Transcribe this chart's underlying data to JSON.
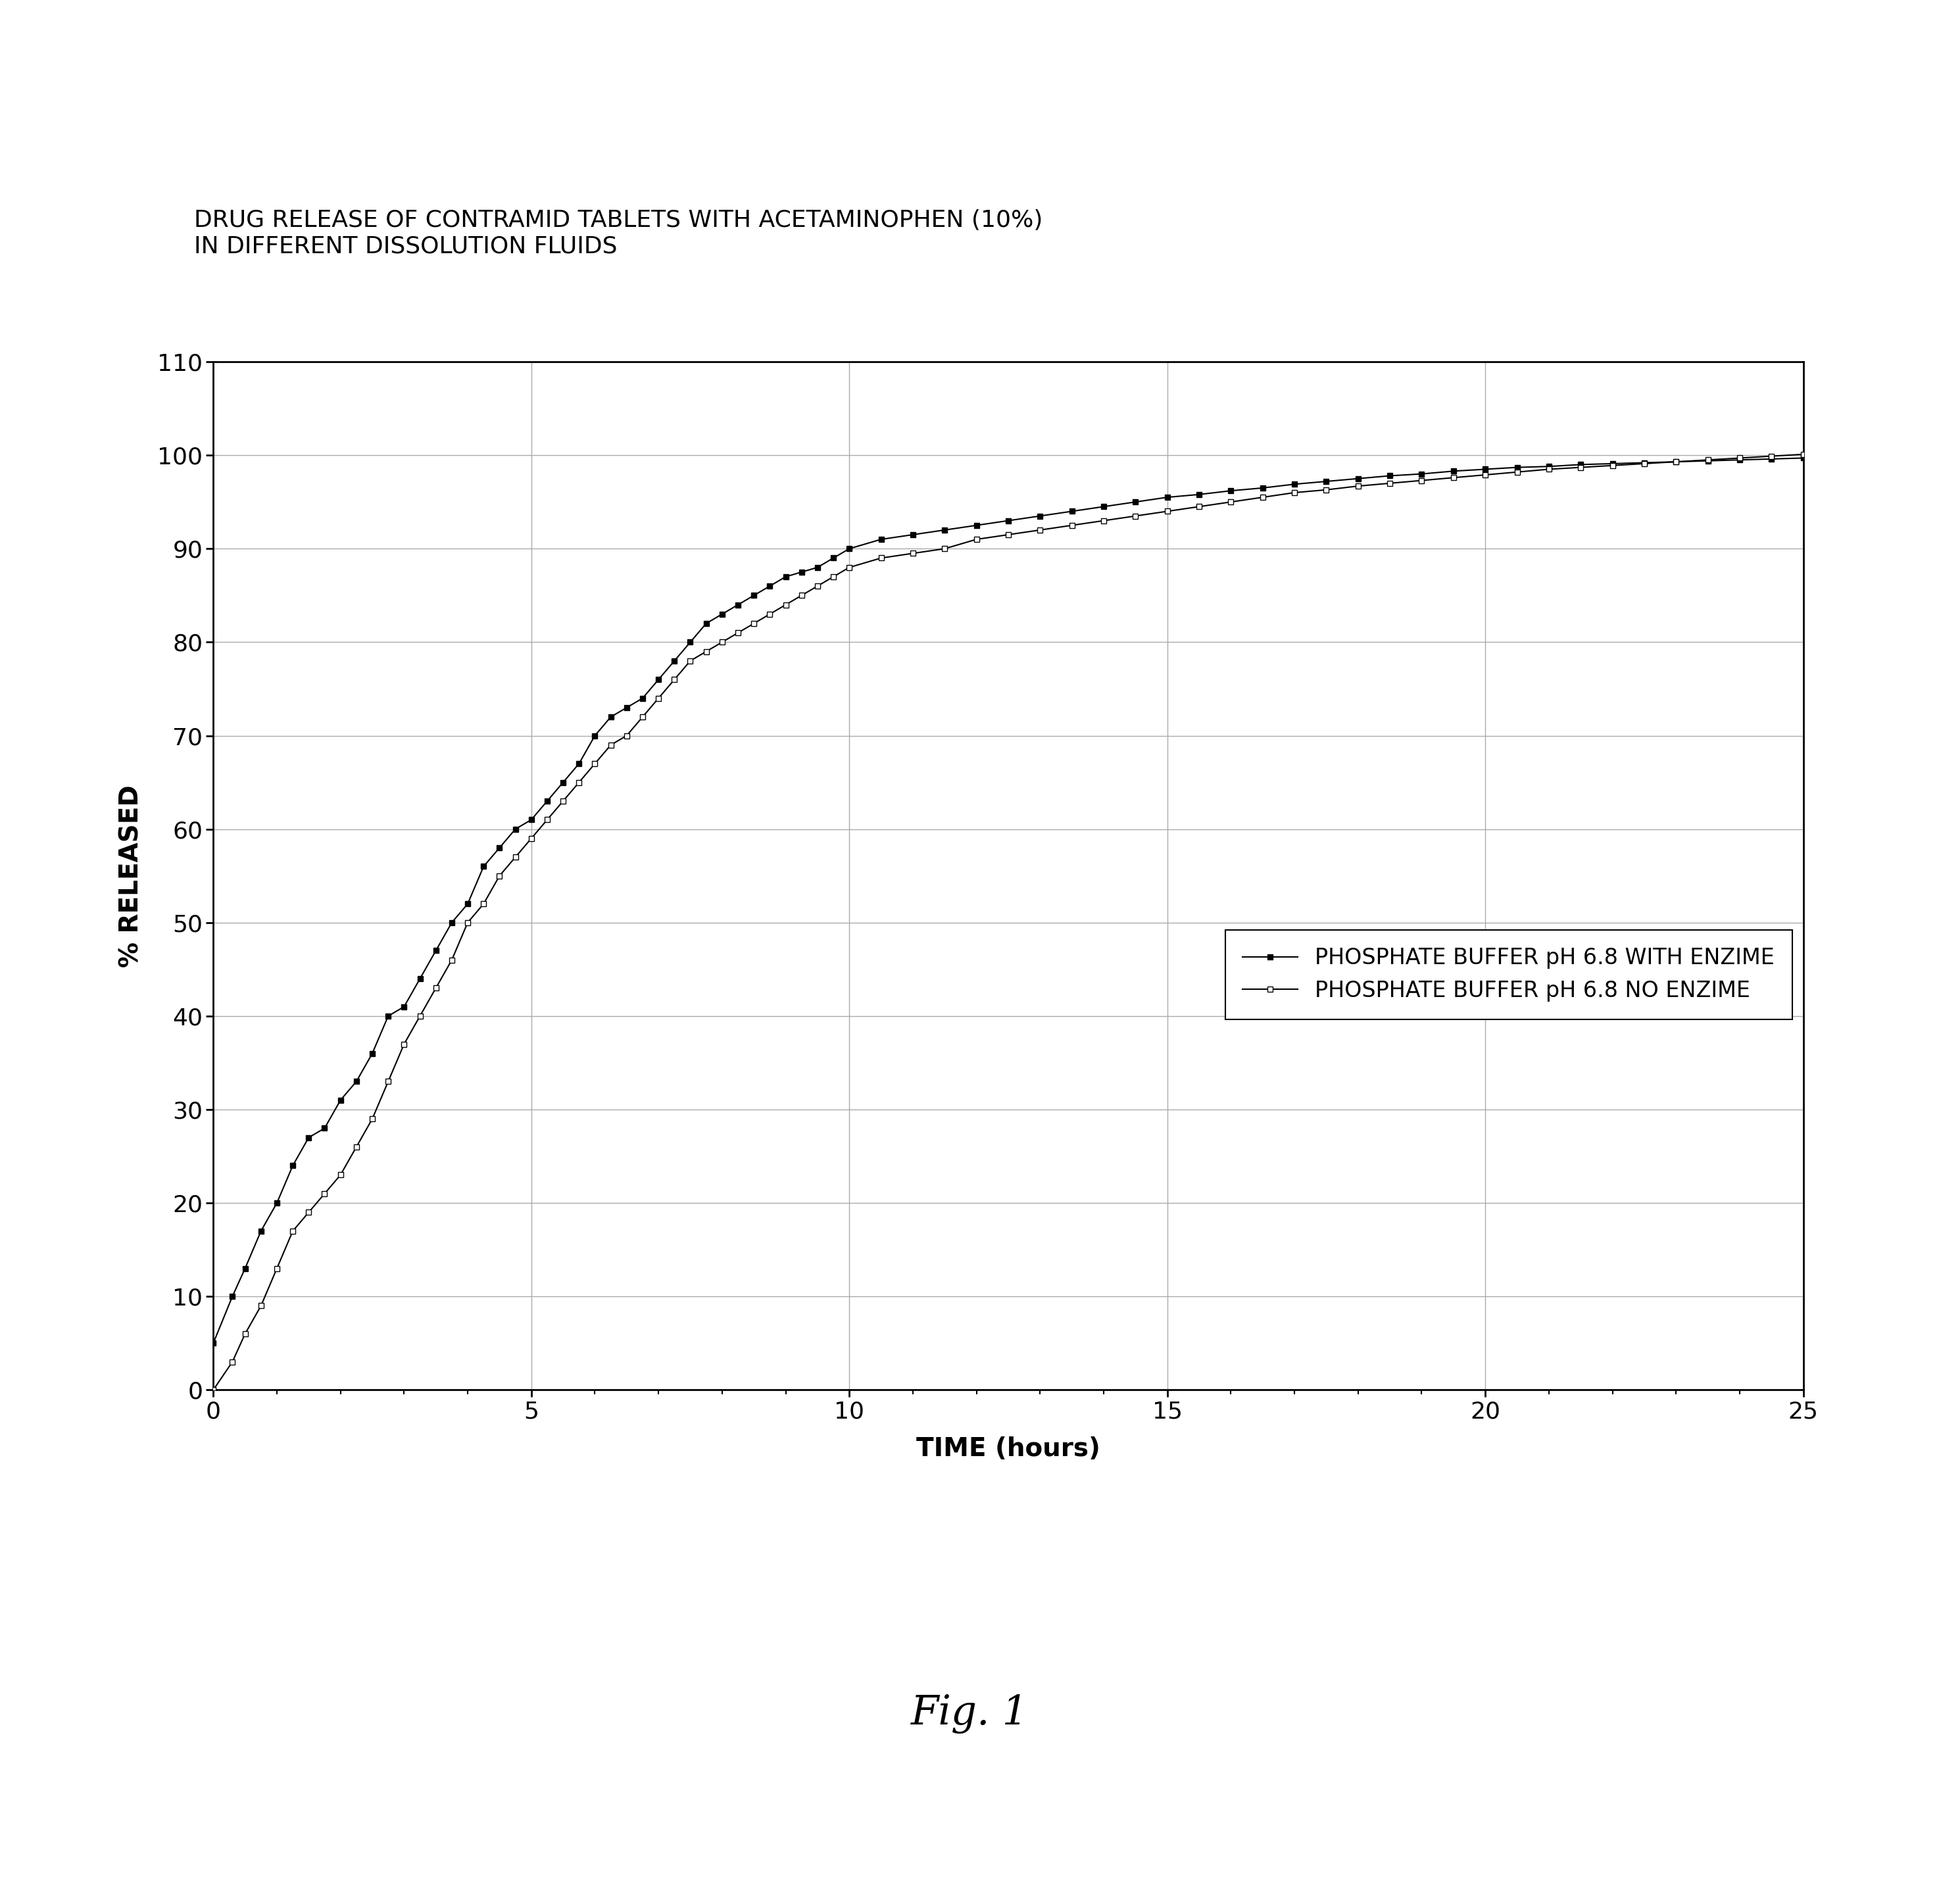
{
  "title_line1": "DRUG RELEASE OF CONTRAMID TABLETS WITH ACETAMINOPHEN (10%)",
  "title_line2": "IN DIFFERENT DISSOLUTION FLUIDS",
  "xlabel": "TIME (hours)",
  "ylabel": "% RELEASED",
  "xlim": [
    0,
    25
  ],
  "ylim": [
    0,
    110
  ],
  "xticks": [
    0,
    5,
    10,
    15,
    20,
    25
  ],
  "yticks": [
    0,
    10,
    20,
    30,
    40,
    50,
    60,
    70,
    80,
    90,
    100,
    110
  ],
  "legend_label_enzyme": "PHOSPHATE BUFFER pH 6.8 WITH ENZIME",
  "legend_label_no_enzyme": "PHOSPHATE BUFFER pH 6.8 NO ENZIME",
  "fig_label": "Fig. 1",
  "series_enzyme_x": [
    0.0,
    0.3,
    0.5,
    0.75,
    1.0,
    1.25,
    1.5,
    1.75,
    2.0,
    2.25,
    2.5,
    2.75,
    3.0,
    3.25,
    3.5,
    3.75,
    4.0,
    4.25,
    4.5,
    4.75,
    5.0,
    5.25,
    5.5,
    5.75,
    6.0,
    6.25,
    6.5,
    6.75,
    7.0,
    7.25,
    7.5,
    7.75,
    8.0,
    8.25,
    8.5,
    8.75,
    9.0,
    9.25,
    9.5,
    9.75,
    10.0,
    10.5,
    11.0,
    11.5,
    12.0,
    12.5,
    13.0,
    13.5,
    14.0,
    14.5,
    15.0,
    15.5,
    16.0,
    16.5,
    17.0,
    17.5,
    18.0,
    18.5,
    19.0,
    19.5,
    20.0,
    20.5,
    21.0,
    21.5,
    22.0,
    22.5,
    23.0,
    23.5,
    24.0,
    24.5,
    25.0
  ],
  "series_enzyme_y": [
    5,
    10,
    13,
    17,
    20,
    24,
    27,
    28,
    31,
    33,
    36,
    40,
    41,
    44,
    47,
    50,
    52,
    56,
    58,
    60,
    61,
    63,
    65,
    67,
    70,
    72,
    73,
    74,
    76,
    78,
    80,
    82,
    83,
    84,
    85,
    86,
    87,
    87.5,
    88,
    89,
    90,
    91,
    91.5,
    92,
    92.5,
    93,
    93.5,
    94,
    94.5,
    95,
    95.5,
    95.8,
    96.2,
    96.5,
    96.9,
    97.2,
    97.5,
    97.8,
    98.0,
    98.3,
    98.5,
    98.7,
    98.8,
    99.0,
    99.1,
    99.2,
    99.3,
    99.4,
    99.5,
    99.6,
    99.7
  ],
  "series_no_enzyme_x": [
    0.0,
    0.3,
    0.5,
    0.75,
    1.0,
    1.25,
    1.5,
    1.75,
    2.0,
    2.25,
    2.5,
    2.75,
    3.0,
    3.25,
    3.5,
    3.75,
    4.0,
    4.25,
    4.5,
    4.75,
    5.0,
    5.25,
    5.5,
    5.75,
    6.0,
    6.25,
    6.5,
    6.75,
    7.0,
    7.25,
    7.5,
    7.75,
    8.0,
    8.25,
    8.5,
    8.75,
    9.0,
    9.25,
    9.5,
    9.75,
    10.0,
    10.5,
    11.0,
    11.5,
    12.0,
    12.5,
    13.0,
    13.5,
    14.0,
    14.5,
    15.0,
    15.5,
    16.0,
    16.5,
    17.0,
    17.5,
    18.0,
    18.5,
    19.0,
    19.5,
    20.0,
    20.5,
    21.0,
    21.5,
    22.0,
    22.5,
    23.0,
    23.5,
    24.0,
    24.5,
    25.0
  ],
  "series_no_enzyme_y": [
    0,
    3,
    6,
    9,
    13,
    17,
    19,
    21,
    23,
    26,
    29,
    33,
    37,
    40,
    43,
    46,
    50,
    52,
    55,
    57,
    59,
    61,
    63,
    65,
    67,
    69,
    70,
    72,
    74,
    76,
    78,
    79,
    80,
    81,
    82,
    83,
    84,
    85,
    86,
    87,
    88,
    89,
    89.5,
    90,
    91,
    91.5,
    92,
    92.5,
    93,
    93.5,
    94,
    94.5,
    95,
    95.5,
    96.0,
    96.3,
    96.7,
    97.0,
    97.3,
    97.6,
    97.9,
    98.2,
    98.5,
    98.7,
    98.9,
    99.1,
    99.3,
    99.5,
    99.7,
    99.9,
    100.1
  ],
  "background_color": "#ffffff",
  "line_color": "#000000",
  "grid_color": "#aaaaaa",
  "title_fontsize": 26,
  "axis_label_fontsize": 28,
  "tick_fontsize": 26,
  "legend_fontsize": 24,
  "fig_label_fontsize": 44,
  "marker_size": 6,
  "line_width": 1.5
}
